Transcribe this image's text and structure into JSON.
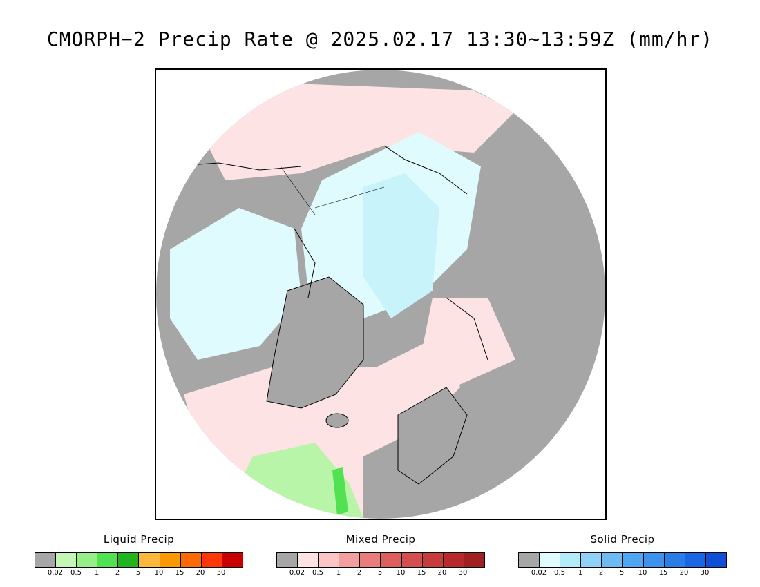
{
  "title": "CMORPH−2 Precip Rate @ 2025.02.17 13:30~13:59Z (mm/hr)",
  "map": {
    "projection": "north-polar-stereographic",
    "background_land_color": "#a6a6a6",
    "ocean_mixed_color": "#fde3e3",
    "snow_color": "#e0fbfd",
    "rain_color": "#b8f5a8",
    "coastline_color": "#000000"
  },
  "legends": [
    {
      "name": "Liquid Precip",
      "colors": [
        "#a6a6a6",
        "#c4f7b5",
        "#94ef86",
        "#52e151",
        "#1fb41e",
        "#fbb83a",
        "#fb9902",
        "#fd6a04",
        "#fd3707",
        "#c80000"
      ],
      "ticks": [
        "0.02",
        "0.5",
        "1",
        "2",
        "5",
        "10",
        "15",
        "20",
        "30"
      ]
    },
    {
      "name": "Mixed Precip",
      "colors": [
        "#a6a6a6",
        "#fde3e3",
        "#fbc5c5",
        "#f49f9f",
        "#ea7c7c",
        "#de5e5e",
        "#d24f4f",
        "#c83b3b",
        "#b82a2a",
        "#a11f1f"
      ],
      "ticks": [
        "0.02",
        "0.5",
        "1",
        "2",
        "5",
        "10",
        "15",
        "20",
        "30"
      ]
    },
    {
      "name": "Solid Precip",
      "colors": [
        "#a6a6a6",
        "#e0fbfd",
        "#b3ecf9",
        "#8fd1f7",
        "#6ebbf4",
        "#4ea6f0",
        "#3c92ed",
        "#2a7ce9",
        "#1a66e2",
        "#0d4fd6"
      ],
      "ticks": [
        "0.02",
        "0.5",
        "1",
        "2",
        "5",
        "10",
        "15",
        "20",
        "30"
      ]
    }
  ]
}
